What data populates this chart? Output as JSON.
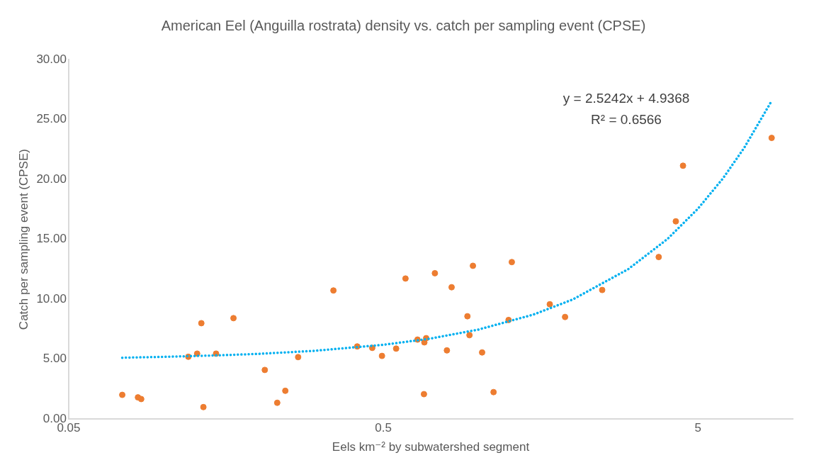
{
  "chart_data": {
    "type": "scatter",
    "title": "American Eel (Anguilla rostrata) density vs. catch per sampling event (CPSE)",
    "xlabel": "Eels km⁻² by subwatershed segment",
    "ylabel": "Catch per sampling event (CPSE)",
    "log": "x",
    "grid": false,
    "marker": "circle",
    "xlim": [
      0.05,
      10
    ],
    "xticks": [
      0.05,
      0.5,
      5
    ],
    "ylim": [
      0,
      30
    ],
    "yticks": [
      {
        "value": 0,
        "label": "0.00"
      },
      {
        "value": 5,
        "label": "5.00"
      },
      {
        "value": 10,
        "label": "10.00"
      },
      {
        "value": 15,
        "label": "15.00"
      },
      {
        "value": 20,
        "label": "20.00"
      },
      {
        "value": 25,
        "label": "25.00"
      },
      {
        "value": 30,
        "label": "30.00"
      }
    ],
    "annotations": [
      "y = 2.5242x + 4.9368",
      "R² = 0.6566"
    ],
    "series": [
      {
        "color": "#ed7d31",
        "x": [
          0.074,
          0.083,
          0.085,
          0.134,
          0.12,
          0.128,
          0.132,
          0.147,
          0.167,
          0.21,
          0.23,
          0.244,
          0.268,
          0.347,
          0.413,
          0.461,
          0.495,
          0.549,
          0.588,
          0.642,
          0.675,
          0.684,
          0.673,
          0.729,
          0.796,
          0.824,
          0.925,
          0.939,
          0.963,
          1.03,
          1.12,
          1.25,
          1.28,
          1.69,
          1.89,
          2.48,
          3.75,
          4.25,
          4.48,
          8.57
        ],
        "values": [
          2.02,
          1.81,
          1.67,
          1.0,
          5.2,
          5.46,
          8.0,
          5.46,
          8.42,
          4.1,
          1.36,
          2.36,
          5.17,
          10.73,
          6.06,
          5.94,
          5.27,
          5.88,
          11.73,
          6.63,
          6.4,
          6.75,
          2.08,
          12.17,
          5.73,
          11.0,
          8.58,
          7.0,
          12.79,
          5.56,
          2.25,
          8.27,
          13.1,
          9.58,
          8.52,
          10.77,
          13.52,
          16.5,
          21.14,
          23.46
        ]
      },
      {
        "type": "line",
        "color": "#00b0f0",
        "marker": "none",
        "line_style": "dotted",
        "x": [
          0.074,
          0.1,
          0.15,
          0.2,
          0.3,
          0.5,
          0.7,
          1,
          1.5,
          2,
          3,
          4,
          5,
          6,
          7,
          8.5
        ],
        "values": [
          5.12,
          5.19,
          5.32,
          5.44,
          5.69,
          6.2,
          6.7,
          7.46,
          8.72,
          9.98,
          12.51,
          15.03,
          17.56,
          20.08,
          22.61,
          26.39
        ]
      }
    ]
  }
}
